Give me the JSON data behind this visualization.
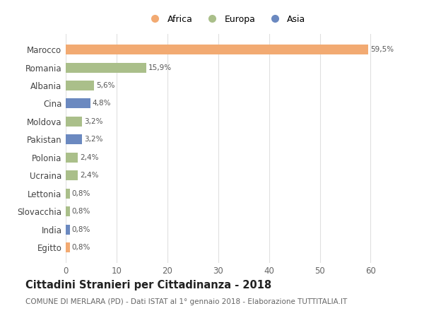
{
  "categories": [
    "Marocco",
    "Romania",
    "Albania",
    "Cina",
    "Moldova",
    "Pakistan",
    "Polonia",
    "Ucraina",
    "Lettonia",
    "Slovacchia",
    "India",
    "Egitto"
  ],
  "values": [
    59.5,
    15.9,
    5.6,
    4.8,
    3.2,
    3.2,
    2.4,
    2.4,
    0.8,
    0.8,
    0.8,
    0.8
  ],
  "labels": [
    "59,5%",
    "15,9%",
    "5,6%",
    "4,8%",
    "3,2%",
    "3,2%",
    "2,4%",
    "2,4%",
    "0,8%",
    "0,8%",
    "0,8%",
    "0,8%"
  ],
  "colors": [
    "#F2AA72",
    "#AABF8A",
    "#AABF8A",
    "#6B89C0",
    "#AABF8A",
    "#6B89C0",
    "#AABF8A",
    "#AABF8A",
    "#AABF8A",
    "#AABF8A",
    "#6B89C0",
    "#F2AA72"
  ],
  "legend_labels": [
    "Africa",
    "Europa",
    "Asia"
  ],
  "legend_colors": [
    "#F2AA72",
    "#AABF8A",
    "#6B89C0"
  ],
  "title": "Cittadini Stranieri per Cittadinanza - 2018",
  "subtitle": "COMUNE DI MERLARA (PD) - Dati ISTAT al 1° gennaio 2018 - Elaborazione TUTTITALIA.IT",
  "xlim": [
    0,
    63
  ],
  "xticks": [
    0,
    10,
    20,
    30,
    40,
    50,
    60
  ],
  "background_color": "#ffffff",
  "grid_color": "#e0e0e0",
  "bar_height": 0.55
}
